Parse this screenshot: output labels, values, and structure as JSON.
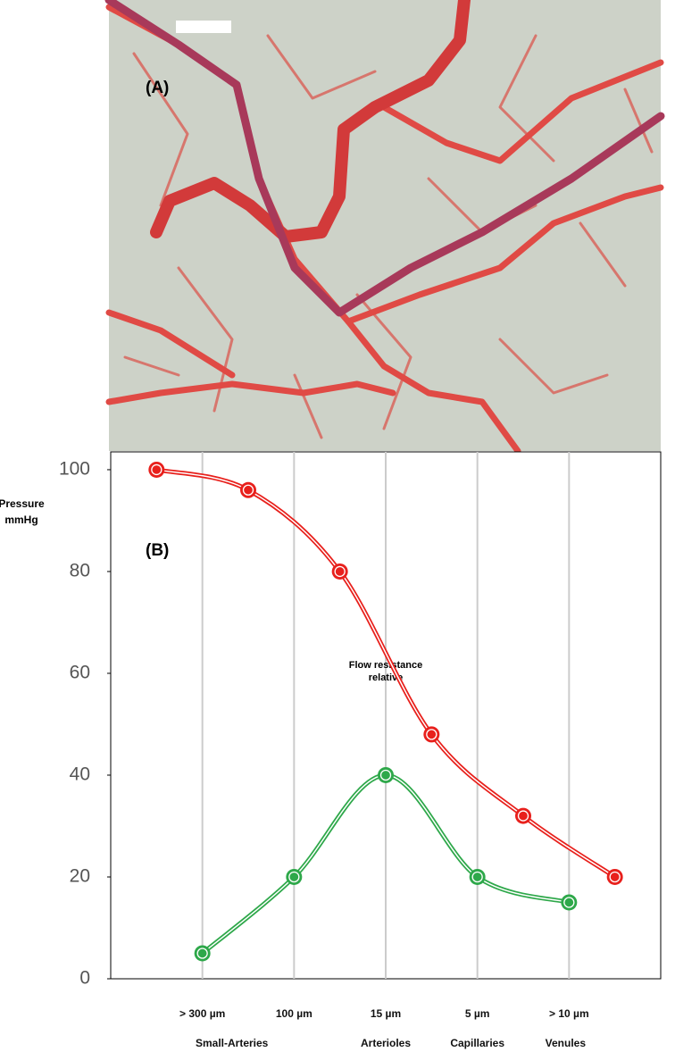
{
  "panel_a": {
    "label": "(A)"
  },
  "chart_data": {
    "type": "line",
    "panel_label": "(B)",
    "ylabel": [
      "Pressure",
      "mmHg"
    ],
    "xlim": [
      0,
      6
    ],
    "ylim": [
      0,
      103.5
    ],
    "xticks": [
      {
        "value": 1,
        "label": "> 300 µm"
      },
      {
        "value": 2,
        "label": "100 µm"
      },
      {
        "value": 3,
        "label": "15 µm"
      },
      {
        "value": 4,
        "label": "5 µm"
      },
      {
        "value": 5,
        "label": "> 10 µm"
      }
    ],
    "x_groups": [
      "Small-Arteries",
      "Arterioles",
      "Capillaries",
      "Venules"
    ],
    "yticks": [
      0,
      20,
      40,
      60,
      80,
      100
    ],
    "grid": true,
    "series": [
      {
        "color": "#e8201c",
        "x": [
          0.5,
          1.5,
          2.5,
          3.5,
          4.5,
          5.5
        ],
        "values": [
          100,
          96,
          80,
          48,
          32,
          20
        ]
      },
      {
        "color": "#2ea84a",
        "x": [
          1,
          2,
          3,
          4,
          5
        ],
        "values": [
          5,
          20,
          40,
          20,
          15
        ]
      }
    ],
    "annotation": [
      "Flow resistance",
      "relative"
    ]
  }
}
